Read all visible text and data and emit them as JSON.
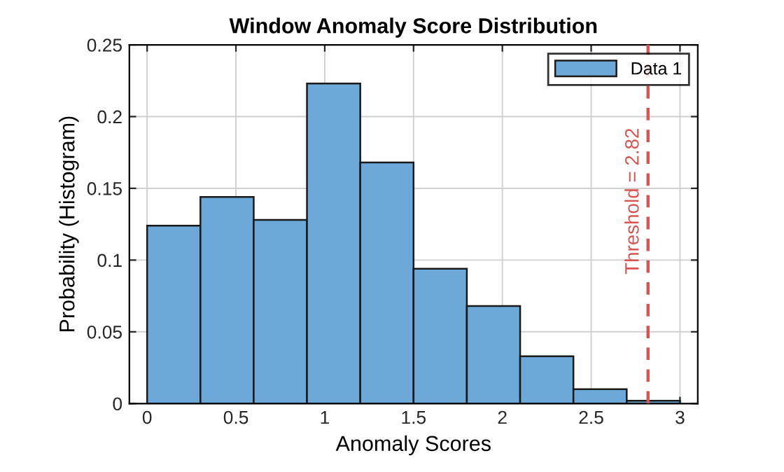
{
  "chart_data": {
    "type": "histogram",
    "title": "Window Anomaly Score Distribution",
    "xlabel": "Anomaly Scores",
    "ylabel": "Probability (Histogram)",
    "bins": [
      0,
      0.3,
      0.6,
      0.9,
      1.2,
      1.5,
      1.8,
      2.1,
      2.4,
      2.7,
      3.0
    ],
    "series": [
      {
        "name": "Data 1",
        "color": "#6ca8d8",
        "values": [
          0.124,
          0.144,
          0.128,
          0.223,
          0.168,
          0.094,
          0.068,
          0.033,
          0.01,
          0.002
        ]
      }
    ],
    "xlim": [
      -0.1,
      3.1
    ],
    "xticks": [
      0,
      0.5,
      1,
      1.5,
      2,
      2.5,
      3
    ],
    "ylim": [
      0,
      0.25
    ],
    "yticks": [
      0,
      0.05,
      0.1,
      0.15,
      0.2,
      0.25
    ],
    "ref_lines": [
      {
        "axis": "x",
        "value": 2.82,
        "label": "Threshold = 2.82",
        "color": "#d9534f",
        "line_style": "dashed"
      }
    ],
    "grid": true,
    "legend": "top right"
  }
}
